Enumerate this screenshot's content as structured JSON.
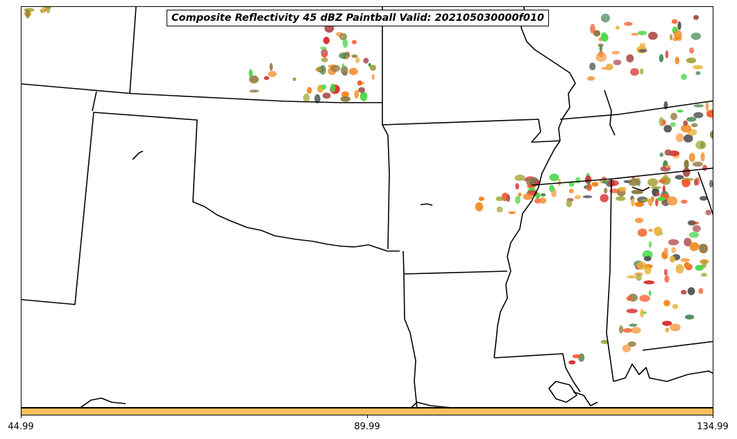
{
  "title": "Composite Reflectivity 45 dBZ Paintball Valid: 202105030000f010",
  "colorbar": {
    "color": "#fcbf5d",
    "ticks": [
      "44.99",
      "89.99",
      "134.99"
    ]
  },
  "map": {
    "projection": "lambert-conformal",
    "region": "Southern Plains / Lower Mississippi Valley",
    "background_color": "#ffffff",
    "boundary_color": "#000000",
    "paintball_colors": [
      "#f55b2f",
      "#f48418",
      "#f8a050",
      "#e8b33b",
      "#a3a63b",
      "#8f7a3f",
      "#4bd94c",
      "#4c8c56",
      "#555555",
      "#b05050",
      "#d73030"
    ]
  }
}
